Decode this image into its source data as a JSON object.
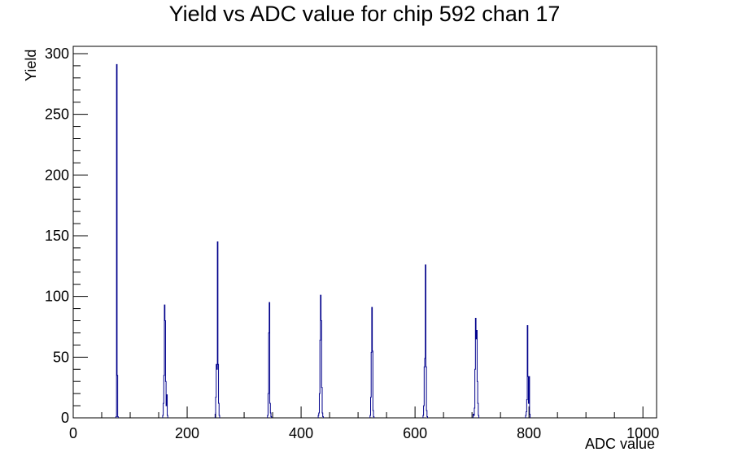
{
  "chart_data": {
    "type": "bar",
    "title": "Yield vs ADC value for chip 592 chan 17",
    "xlabel": "ADC value",
    "ylabel": "Yield",
    "xlim": [
      0,
      1024
    ],
    "ylim": [
      0,
      306
    ],
    "x_ticks": [
      0,
      200,
      400,
      600,
      800,
      1000
    ],
    "y_ticks": [
      0,
      50,
      100,
      150,
      200,
      250,
      300
    ],
    "grid": false,
    "line_color": "#00008b",
    "series": [
      {
        "x": [
          75,
          76,
          77,
          78,
          157,
          158,
          159,
          160,
          161,
          162,
          163,
          164,
          165,
          249,
          250,
          251,
          252,
          253,
          254,
          255,
          256,
          341,
          342,
          343,
          344,
          345,
          346,
          347,
          430,
          431,
          432,
          433,
          434,
          435,
          436,
          437,
          438,
          521,
          522,
          523,
          524,
          525,
          526,
          527,
          614,
          615,
          616,
          617,
          618,
          619,
          620,
          621,
          702,
          703,
          704,
          705,
          706,
          707,
          708,
          709,
          710,
          711,
          794,
          795,
          796,
          797,
          798,
          799,
          800,
          801
        ],
        "values": [
          1,
          291,
          35,
          1,
          2,
          12,
          35,
          93,
          80,
          30,
          10,
          19,
          2,
          3,
          17,
          44,
          40,
          145,
          44,
          12,
          2,
          2,
          20,
          70,
          95,
          12,
          4,
          1,
          2,
          4,
          20,
          64,
          101,
          80,
          25,
          4,
          1,
          2,
          17,
          54,
          91,
          55,
          6,
          1,
          2,
          10,
          42,
          49,
          126,
          42,
          6,
          1,
          3,
          2,
          8,
          40,
          82,
          65,
          72,
          30,
          12,
          2,
          2,
          5,
          15,
          76,
          34,
          12,
          34,
          3
        ]
      }
    ]
  }
}
